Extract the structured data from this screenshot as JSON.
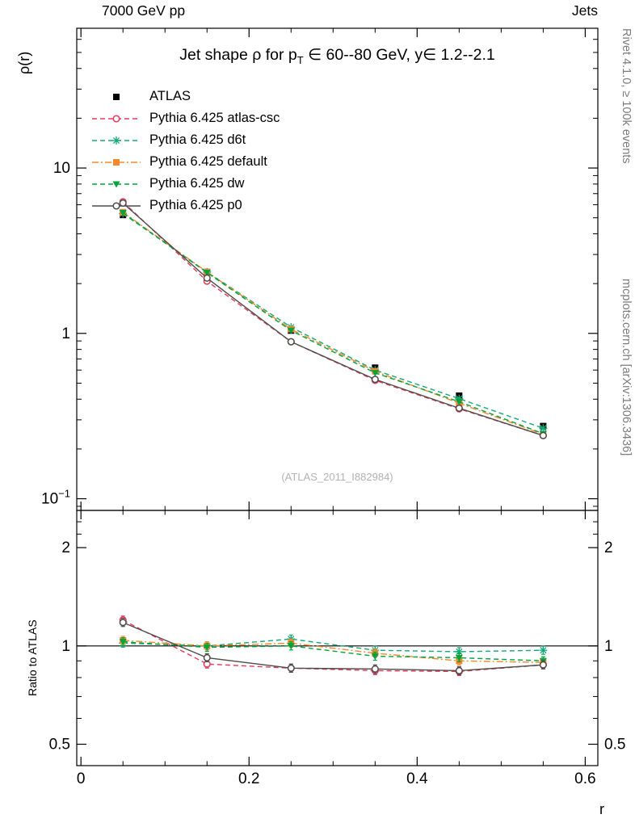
{
  "page": {
    "header_left": "7000 GeV pp",
    "header_right": "Jets",
    "title": {
      "pre": "Jet shape ρ for p",
      "sub": "T",
      "post": " ∈ 60--80 GeV, y∈ 1.2--2.1"
    },
    "ylabel_main": "ρ(r)",
    "ylabel_ratio": "Ratio to ATLAS",
    "xlabel": "r",
    "watermark": "(ATLAS_2011_I882984)",
    "side_text_top": "Rivet 4.1.0, ≥ 100k events",
    "side_text_bottom": "mcplots.cern.ch [arXiv:1306.3436]"
  },
  "chart_data": {
    "type": "line",
    "title": "Jet shape ρ for pT ∈ 60--80 GeV, y ∈ 1.2--2.1",
    "xlabel": "r",
    "ylabel_main": "ρ(r)",
    "ylabel_ratio": "Ratio to ATLAS",
    "x": [
      0.05,
      0.15,
      0.25,
      0.35,
      0.45,
      0.55
    ],
    "x_axis": {
      "range": [
        -0.005,
        0.615
      ],
      "minor_step": 0.05,
      "major_ticks": [
        {
          "v": 0,
          "label": "0"
        },
        {
          "v": 0.2,
          "label": "0.2"
        },
        {
          "v": 0.4,
          "label": "0.4"
        },
        {
          "v": 0.6,
          "label": "0.6"
        }
      ]
    },
    "y_axis_main": {
      "scale": "log",
      "range": [
        0.085,
        70
      ],
      "major_ticks": [
        {
          "v": 10,
          "label": "10"
        },
        {
          "v": 1,
          "label": "1"
        },
        {
          "v": 0.1,
          "label": "10",
          "sup": "−1"
        }
      ]
    },
    "y_axis_ratio": {
      "scale": "log",
      "range": [
        0.43,
        2.6
      ],
      "major_ticks": [
        {
          "v": 2,
          "label": "2"
        },
        {
          "v": 1,
          "label": "1"
        },
        {
          "v": 0.5,
          "label": "0.5"
        }
      ],
      "minor_ticks": [
        0.6,
        0.7,
        0.8,
        0.9,
        2.2,
        2.4
      ]
    },
    "reference_line": 1,
    "series": [
      {
        "name": "ATLAS",
        "marker": "filled-square",
        "line": "none",
        "color": "#000000",
        "values": [
          5.2,
          2.35,
          1.04,
          0.62,
          0.42,
          0.275
        ]
      },
      {
        "name": "Pythia 6.425 atlas-csc",
        "marker": "open-circle",
        "line": "dashed",
        "color": "#e43a5a",
        "values": [
          6.25,
          2.07,
          0.89,
          0.52,
          0.35,
          0.241
        ],
        "ratio": [
          1.2,
          0.88,
          0.855,
          0.84,
          0.835,
          0.875
        ]
      },
      {
        "name": "Pythia 6.425 d6t",
        "marker": "star",
        "line": "dashed",
        "color": "#13a878",
        "values": [
          5.3,
          2.35,
          1.09,
          0.6,
          0.403,
          0.267
        ],
        "ratio": [
          1.02,
          1.0,
          1.05,
          0.97,
          0.96,
          0.97
        ]
      },
      {
        "name": "Pythia 6.425 default",
        "marker": "filled-square",
        "line": "dashdot",
        "color": "#f6882c",
        "values": [
          5.4,
          2.35,
          1.06,
          0.59,
          0.378,
          0.245
        ],
        "ratio": [
          1.04,
          1.0,
          1.02,
          0.95,
          0.9,
          0.89
        ]
      },
      {
        "name": "Pythia 6.425 dw",
        "marker": "filled-triangle-down",
        "line": "dashed",
        "color": "#00a33c",
        "values": [
          5.36,
          2.33,
          1.04,
          0.577,
          0.386,
          0.2475
        ],
        "ratio": [
          1.03,
          0.99,
          1.0,
          0.93,
          0.92,
          0.9
        ]
      },
      {
        "name": "Pythia 6.425 p0",
        "marker": "open-circle",
        "line": "solid",
        "color": "#4e4b48",
        "values": [
          6.14,
          2.16,
          0.89,
          0.527,
          0.353,
          0.241
        ],
        "ratio": [
          1.18,
          0.92,
          0.855,
          0.85,
          0.84,
          0.875
        ]
      }
    ],
    "legend_position": "top-left",
    "grid": false
  }
}
